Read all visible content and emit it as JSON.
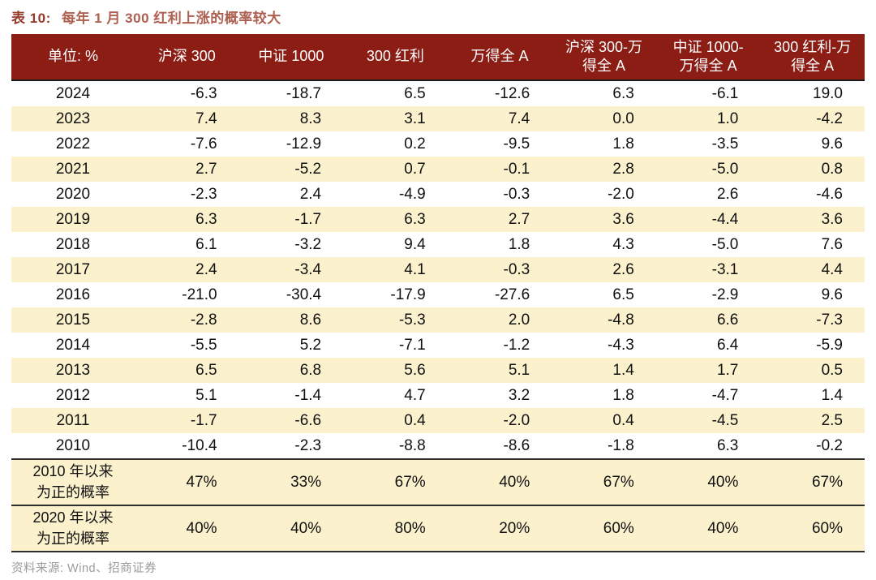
{
  "title": {
    "prefix": "表 10:",
    "text": "每年 1 月 300 红利上涨的概率较大"
  },
  "chart_data": {
    "type": "table",
    "title": "表 10: 每年 1 月 300 红利上涨的概率较大",
    "unit_label": "单位: %",
    "columns": [
      "沪深 300",
      "中证 1000",
      "300 红利",
      "万得全 A",
      "沪深 300-万\n得全 A",
      "中证 1000-\n万得全 A",
      "300 红利-万\n得全 A"
    ],
    "rows": [
      {
        "year": "2024",
        "values": [
          "-6.3",
          "-18.7",
          "6.5",
          "-12.6",
          "6.3",
          "-6.1",
          "19.0"
        ]
      },
      {
        "year": "2023",
        "values": [
          "7.4",
          "8.3",
          "3.1",
          "7.4",
          "0.0",
          "1.0",
          "-4.2"
        ]
      },
      {
        "year": "2022",
        "values": [
          "-7.6",
          "-12.9",
          "0.2",
          "-9.5",
          "1.8",
          "-3.5",
          "9.6"
        ]
      },
      {
        "year": "2021",
        "values": [
          "2.7",
          "-5.2",
          "0.7",
          "-0.1",
          "2.8",
          "-5.0",
          "0.8"
        ]
      },
      {
        "year": "2020",
        "values": [
          "-2.3",
          "2.4",
          "-4.9",
          "-0.3",
          "-2.0",
          "2.6",
          "-4.6"
        ]
      },
      {
        "year": "2019",
        "values": [
          "6.3",
          "-1.7",
          "6.3",
          "2.7",
          "3.6",
          "-4.4",
          "3.6"
        ]
      },
      {
        "year": "2018",
        "values": [
          "6.1",
          "-3.2",
          "9.4",
          "1.8",
          "4.3",
          "-5.0",
          "7.6"
        ]
      },
      {
        "year": "2017",
        "values": [
          "2.4",
          "-3.4",
          "4.1",
          "-0.3",
          "2.6",
          "-3.1",
          "4.4"
        ]
      },
      {
        "year": "2016",
        "values": [
          "-21.0",
          "-30.4",
          "-17.9",
          "-27.6",
          "6.5",
          "-2.9",
          "9.6"
        ]
      },
      {
        "year": "2015",
        "values": [
          "-2.8",
          "8.6",
          "-5.3",
          "2.0",
          "-4.8",
          "6.6",
          "-7.3"
        ]
      },
      {
        "year": "2014",
        "values": [
          "-5.5",
          "5.2",
          "-7.1",
          "-1.2",
          "-4.3",
          "6.4",
          "-5.9"
        ]
      },
      {
        "year": "2013",
        "values": [
          "6.5",
          "6.8",
          "5.6",
          "5.1",
          "1.4",
          "1.7",
          "0.5"
        ]
      },
      {
        "year": "2012",
        "values": [
          "5.1",
          "-1.4",
          "4.7",
          "3.2",
          "1.8",
          "-4.7",
          "1.4"
        ]
      },
      {
        "year": "2011",
        "values": [
          "-1.7",
          "-6.6",
          "0.4",
          "-2.0",
          "0.4",
          "-4.5",
          "2.5"
        ]
      },
      {
        "year": "2010",
        "values": [
          "-10.4",
          "-2.3",
          "-8.8",
          "-8.6",
          "-1.8",
          "6.3",
          "-0.2"
        ]
      }
    ],
    "summary_rows": [
      {
        "label": "2010 年以来\n为正的概率",
        "values": [
          "47%",
          "33%",
          "67%",
          "40%",
          "67%",
          "40%",
          "67%"
        ]
      },
      {
        "label": "2020 年以来\n为正的概率",
        "values": [
          "40%",
          "40%",
          "80%",
          "20%",
          "60%",
          "40%",
          "60%"
        ]
      }
    ],
    "source": "资料来源: Wind、招商证券"
  },
  "colors": {
    "header_bg": "#8b1d15",
    "row_alt": "#fbf2cd",
    "title_prefix": "#963b2b",
    "title_text": "#ae5f4f",
    "source_text": "#9b9b9b"
  }
}
